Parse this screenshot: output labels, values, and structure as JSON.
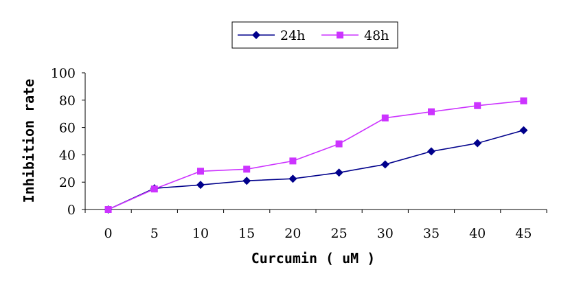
{
  "chart_data": {
    "type": "line",
    "title": "",
    "xlabel": "Curcumin ( uM )",
    "ylabel": "Inhibition rate",
    "x": [
      0,
      5,
      10,
      15,
      20,
      25,
      30,
      35,
      40,
      45
    ],
    "x_tick_labels": [
      "0",
      "5",
      "10",
      "15",
      "20",
      "25",
      "30",
      "35",
      "40",
      "45"
    ],
    "y_tick_labels": [
      "0",
      "20",
      "40",
      "60",
      "80",
      "100"
    ],
    "ylim": [
      0,
      100
    ],
    "grid": false,
    "legend": "top-center",
    "series": [
      {
        "name": "24h",
        "marker": "diamond",
        "color": "#00008B",
        "values": [
          0,
          15.5,
          18,
          21,
          22.5,
          27,
          33,
          42.5,
          48.5,
          58
        ]
      },
      {
        "name": "48h",
        "marker": "square",
        "color": "#CC33FF",
        "values": [
          0,
          15,
          28,
          29.5,
          35.5,
          48,
          67,
          71.5,
          76,
          79.5
        ]
      }
    ]
  }
}
